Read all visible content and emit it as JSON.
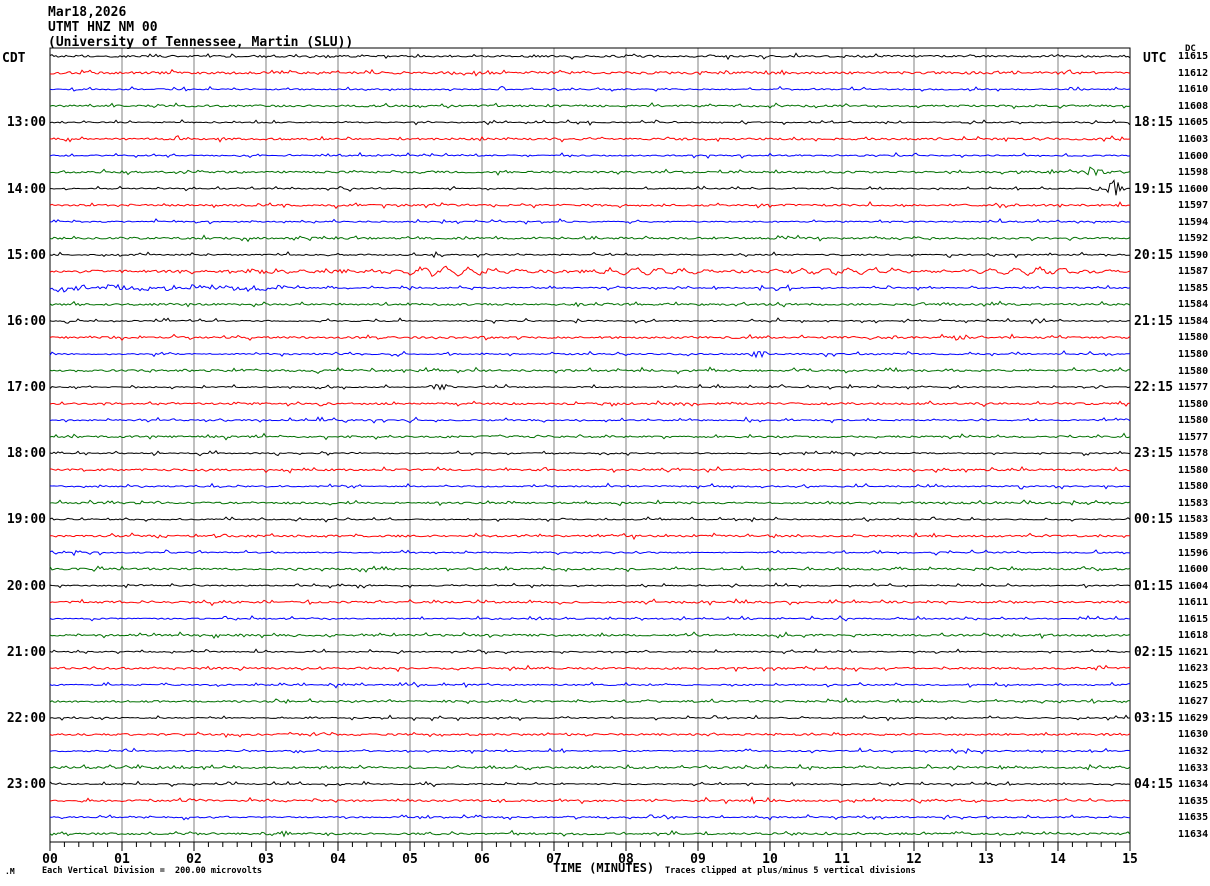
{
  "title": {
    "date": "Mar18,2026",
    "station": "UTMT HNZ NM 00",
    "network": "(University of Tennessee, Martin (SLU))"
  },
  "left_axis": {
    "header": "CDT",
    "labels": [
      {
        "row": 5,
        "text": "13:00"
      },
      {
        "row": 9,
        "text": "14:00"
      },
      {
        "row": 13,
        "text": "15:00"
      },
      {
        "row": 17,
        "text": "16:00"
      },
      {
        "row": 21,
        "text": "17:00"
      },
      {
        "row": 25,
        "text": "18:00"
      },
      {
        "row": 29,
        "text": "19:00"
      },
      {
        "row": 33,
        "text": "20:00"
      },
      {
        "row": 37,
        "text": "21:00"
      },
      {
        "row": 41,
        "text": "22:00"
      },
      {
        "row": 45,
        "text": "23:00"
      }
    ]
  },
  "right_axis": {
    "header": "UTC",
    "labels": [
      {
        "row": 5,
        "text": "18:15"
      },
      {
        "row": 9,
        "text": "19:15"
      },
      {
        "row": 13,
        "text": "20:15"
      },
      {
        "row": 17,
        "text": "21:15"
      },
      {
        "row": 21,
        "text": "22:15"
      },
      {
        "row": 25,
        "text": "23:15"
      },
      {
        "row": 29,
        "text": "00:15"
      },
      {
        "row": 33,
        "text": "01:15"
      },
      {
        "row": 37,
        "text": "02:15"
      },
      {
        "row": 41,
        "text": "03:15"
      },
      {
        "row": 45,
        "text": "04:15"
      }
    ]
  },
  "dc_column": {
    "header": "DC"
  },
  "x_axis": {
    "title": "TIME (MINUTES)",
    "tick_labels": [
      "00",
      "01",
      "02",
      "03",
      "04",
      "05",
      "06",
      "07",
      "08",
      "09",
      "10",
      "11",
      "12",
      "13",
      "14",
      "15"
    ]
  },
  "footer": {
    "left_glyph": ".M",
    "scale_note": "Each Vertical Division =  200.00 microvolts",
    "clip_note": "Traces clipped at plus/minus 5 vertical divisions"
  },
  "colors": {
    "trace_cycle": [
      "#000000",
      "#ff0000",
      "#0000ff",
      "#007000"
    ],
    "grid": "#808080",
    "border": "#000000",
    "background": "#ffffff"
  },
  "chart_data": {
    "type": "line",
    "subtype": "helicorder",
    "rows_count": 48,
    "minutes_per_row": 15,
    "x_range_minutes": [
      0,
      15
    ],
    "minor_ticks_per_minute": 5,
    "clip_divisions": 5,
    "microvolts_per_division": 200.0,
    "dc_values": [
      11615,
      11612,
      11610,
      11608,
      11605,
      11603,
      11600,
      11598,
      11600,
      11597,
      11594,
      11592,
      11590,
      11587,
      11585,
      11584,
      11584,
      11580,
      11580,
      11580,
      11577,
      11580,
      11580,
      11577,
      11578,
      11580,
      11580,
      11583,
      11583,
      11589,
      11596,
      11600,
      11604,
      11611,
      11615,
      11618,
      11621,
      11623,
      11625,
      11627,
      11629,
      11630,
      11632,
      11633,
      11634,
      11635,
      11635,
      11634
    ],
    "noise_amp_by_color": [
      0.55,
      0.95,
      0.65,
      0.95
    ],
    "row_noise_boost": {
      "1": 1.7,
      "2": 1.25,
      "13": 1.15,
      "14": 1.2
    },
    "events": [
      {
        "row": 8,
        "type": "burst",
        "center": 14.5,
        "dur": 0.22,
        "amp": 4.5
      },
      {
        "row": 8,
        "type": "burst",
        "center": 14.85,
        "dur": 0.1,
        "amp": 2.0
      },
      {
        "row": 9,
        "type": "burst",
        "center": 14.78,
        "dur": 0.13,
        "amp": 11.0
      },
      {
        "row": 9,
        "type": "burst",
        "center": 14.55,
        "dur": 0.08,
        "amp": 3.0
      },
      {
        "row": 14,
        "type": "surface_waves",
        "start": 2.6,
        "end": 15,
        "amp": 3.2,
        "period": 0.33
      },
      {
        "row": 14,
        "type": "noise_band",
        "start": 2.6,
        "end": 8.5,
        "amp": 1.3,
        "meander": 0
      },
      {
        "row": 15,
        "type": "noise_band",
        "start": 0,
        "end": 3.4,
        "amp": 2.4,
        "meander": 1.3
      },
      {
        "row": 18,
        "type": "burst",
        "center": 12.62,
        "dur": 0.16,
        "amp": 4.5
      },
      {
        "row": 18,
        "type": "burst",
        "center": 11.72,
        "dur": 0.05,
        "amp": 2.5
      },
      {
        "row": 19,
        "type": "burst",
        "center": 9.85,
        "dur": 0.16,
        "amp": 3.5
      },
      {
        "row": 21,
        "type": "burst",
        "center": 5.42,
        "dur": 0.2,
        "amp": 3.5
      }
    ]
  }
}
